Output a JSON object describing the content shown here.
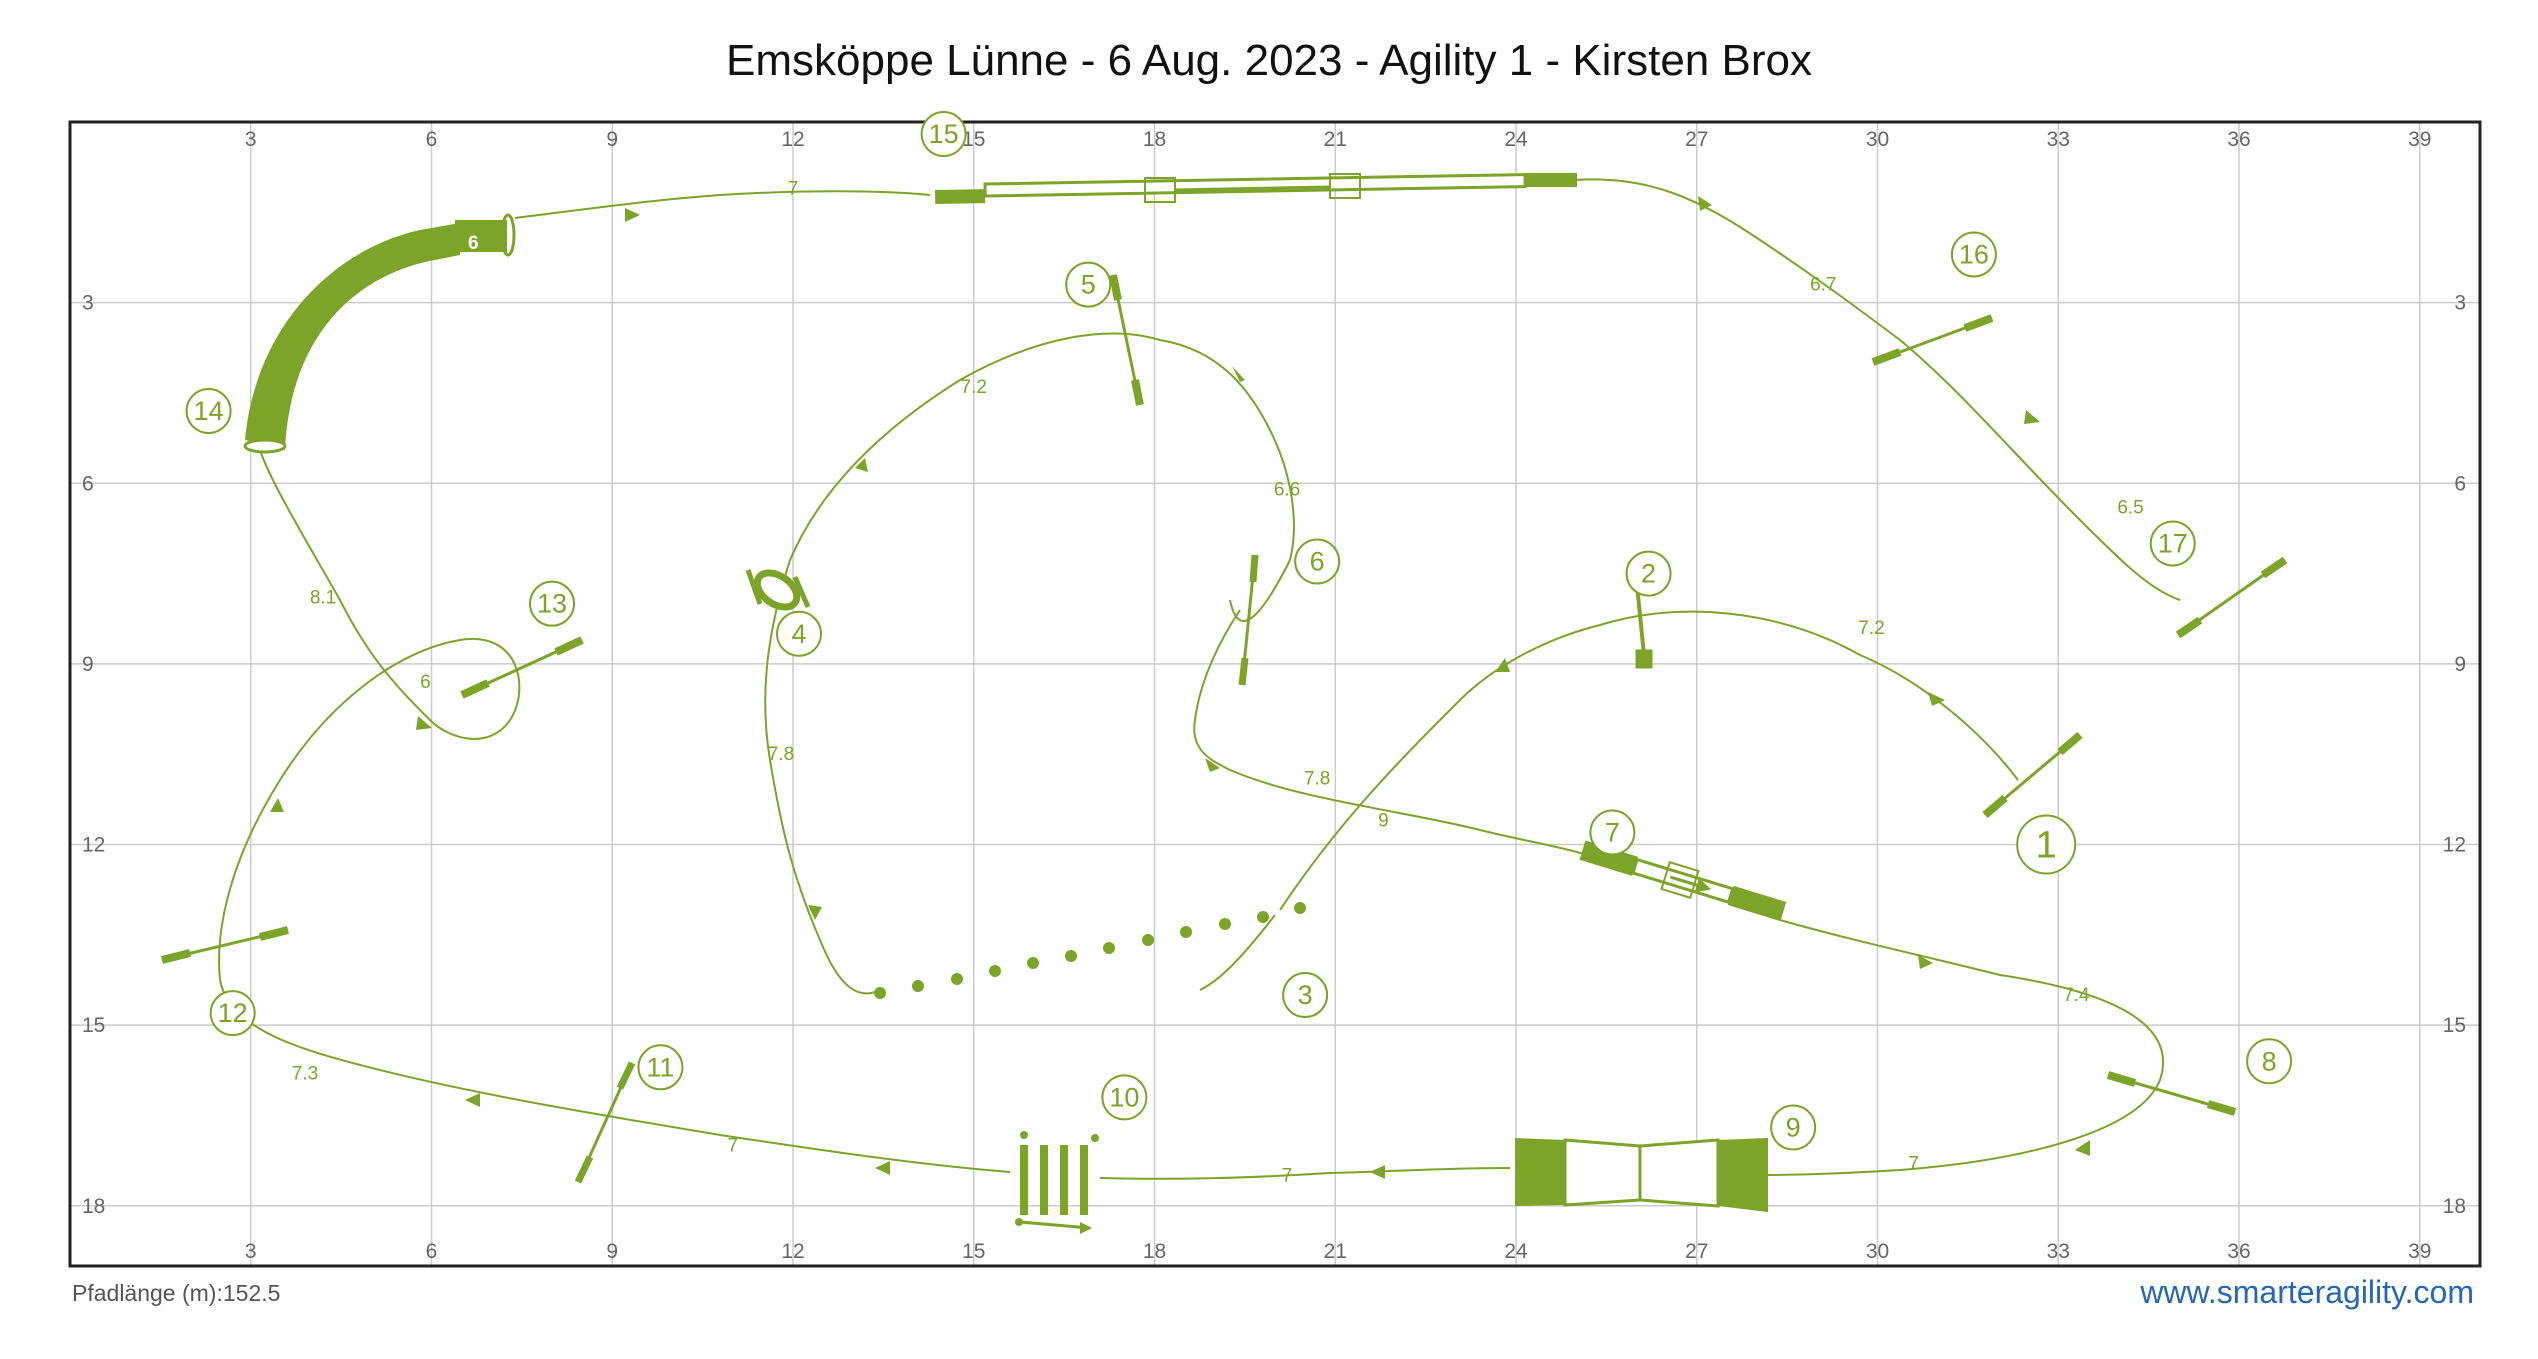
{
  "title": "Emsköppe Lünne - 6 Aug. 2023 - Agility 1 - Kirsten Brox",
  "footer": {
    "path_length_label": "Pfadlänge (m):",
    "path_length_value": "152.5",
    "website": "www.smarteragility.com"
  },
  "colors": {
    "course": "#7ba428",
    "grid": "#cccccc",
    "frame": "#222222",
    "axis_text": "#666666"
  },
  "axes": {
    "x_ticks": [
      3,
      6,
      9,
      12,
      15,
      18,
      21,
      24,
      27,
      30,
      33,
      36,
      39
    ],
    "y_ticks": [
      3,
      6,
      9,
      12,
      15,
      18
    ],
    "x_range": [
      0,
      40
    ],
    "y_range": [
      0,
      19
    ]
  },
  "obstacles": [
    {
      "num": "1",
      "type": "hurdle",
      "x": 32.8,
      "y": 12.0
    },
    {
      "num": "2",
      "type": "hurdle",
      "x": 26.2,
      "y": 7.5
    },
    {
      "num": "3",
      "type": "weave-poles",
      "x": 20.5,
      "y": 14.5
    },
    {
      "num": "4",
      "type": "tire",
      "x": 12.1,
      "y": 8.5
    },
    {
      "num": "5",
      "type": "hurdle",
      "x": 16.9,
      "y": 2.7
    },
    {
      "num": "6",
      "type": "hurdle",
      "x": 20.7,
      "y": 7.3
    },
    {
      "num": "7",
      "type": "seesaw",
      "x": 25.6,
      "y": 11.8
    },
    {
      "num": "8",
      "type": "hurdle",
      "x": 36.5,
      "y": 15.6
    },
    {
      "num": "9",
      "type": "a-frame",
      "x": 28.6,
      "y": 16.7
    },
    {
      "num": "10",
      "type": "long-jump",
      "x": 17.5,
      "y": 16.2
    },
    {
      "num": "11",
      "type": "hurdle",
      "x": 9.8,
      "y": 15.7
    },
    {
      "num": "12",
      "type": "hurdle",
      "x": 2.7,
      "y": 14.8
    },
    {
      "num": "13",
      "type": "hurdle",
      "x": 8.0,
      "y": 8.0
    },
    {
      "num": "14",
      "type": "tunnel",
      "x": 2.3,
      "y": 4.8
    },
    {
      "num": "15",
      "type": "dog-walk",
      "x": 14.5,
      "y": 0.2
    },
    {
      "num": "16",
      "type": "hurdle",
      "x": 31.6,
      "y": 2.2
    },
    {
      "num": "17",
      "type": "hurdle",
      "x": 34.9,
      "y": 7.0
    }
  ],
  "tunnel_label": "6",
  "distance_labels": [
    {
      "text": "7.2",
      "x": 29.9,
      "y": 8.5
    },
    {
      "text": "7.8",
      "x": 20.7,
      "y": 11.0
    },
    {
      "text": "7.8",
      "x": 11.8,
      "y": 10.6
    },
    {
      "text": "7.2",
      "x": 15.0,
      "y": 4.5
    },
    {
      "text": "6.6",
      "x": 20.2,
      "y": 6.2
    },
    {
      "text": "9",
      "x": 21.8,
      "y": 11.7
    },
    {
      "text": "7.4",
      "x": 33.3,
      "y": 14.6
    },
    {
      "text": "7",
      "x": 30.6,
      "y": 17.4
    },
    {
      "text": "7",
      "x": 20.2,
      "y": 17.6
    },
    {
      "text": "7",
      "x": 11.0,
      "y": 17.1
    },
    {
      "text": "7.3",
      "x": 3.9,
      "y": 15.9
    },
    {
      "text": "6",
      "x": 5.9,
      "y": 9.4
    },
    {
      "text": "8.1",
      "x": 4.2,
      "y": 8.0
    },
    {
      "text": "7",
      "x": 12.0,
      "y": 1.2
    },
    {
      "text": "6.7",
      "x": 29.1,
      "y": 2.8
    },
    {
      "text": "6.5",
      "x": 34.2,
      "y": 6.5
    }
  ]
}
